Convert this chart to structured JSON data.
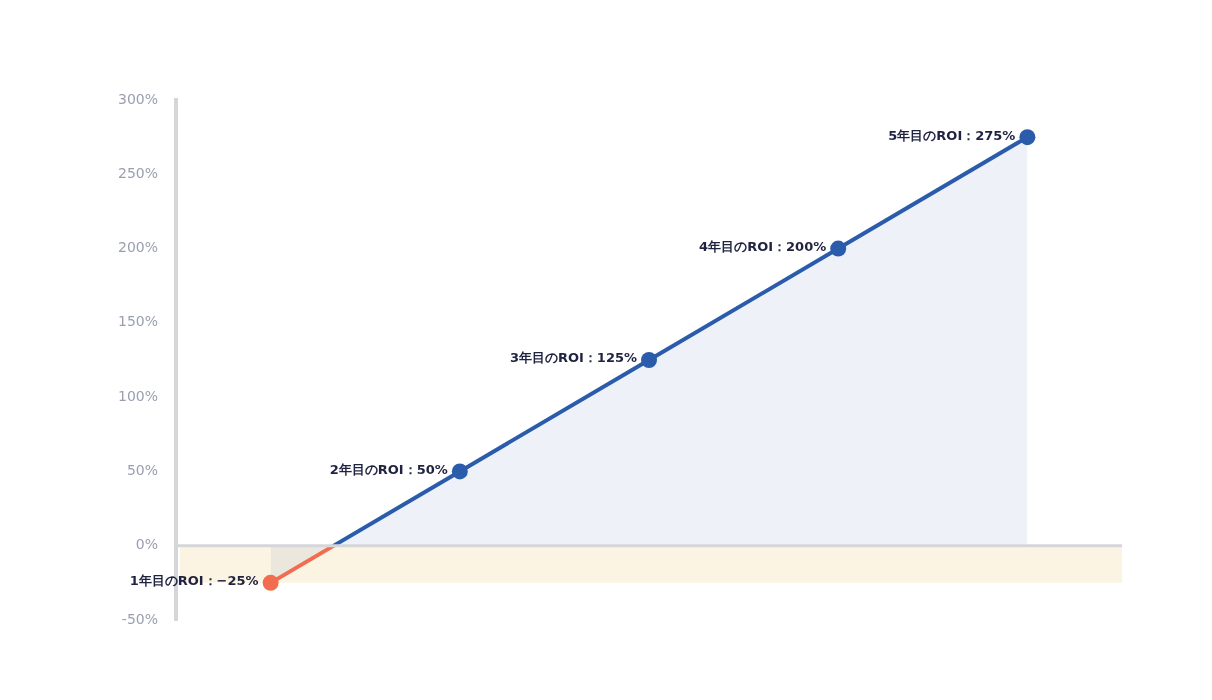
{
  "chart_data": {
    "type": "area",
    "categories": [
      null,
      null,
      null,
      null,
      null
    ],
    "series": [
      {
        "color": "#2a5cab",
        "colors": [
          "#f26d50",
          "#2a5cab",
          "#2a5cab",
          "#2a5cab",
          "#2a5cab"
        ],
        "values": [
          -25,
          50,
          125,
          200,
          275
        ],
        "value_labels": [
          "1年目のROI：−25%",
          "2年目のROI：50%",
          "3年目のROI：125%",
          "4年目のROI：200%",
          "5年目のROI：275%"
        ]
      }
    ],
    "ylim": [
      -50,
      300
    ],
    "yticks": [
      {
        "value": -50,
        "label": "-50%"
      },
      {
        "value": 0,
        "label": "0%"
      },
      {
        "value": 50,
        "label": "50%"
      },
      {
        "value": 100,
        "label": "100%"
      },
      {
        "value": 150,
        "label": "150%"
      },
      {
        "value": 200,
        "label": "200%"
      },
      {
        "value": 250,
        "label": "250%"
      },
      {
        "value": 300,
        "label": "300%"
      }
    ],
    "ref_lines": [
      {
        "axis": "y",
        "value": 0,
        "color": "#d5d6da"
      }
    ],
    "bands": [
      {
        "axis": "y",
        "from": -25,
        "to": 0,
        "color": "#fcf4e2"
      }
    ],
    "grid": false,
    "legend": false,
    "marker": "circle",
    "line_style": "solid"
  }
}
